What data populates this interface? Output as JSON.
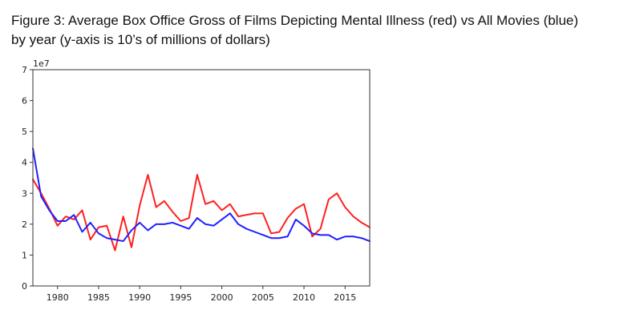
{
  "caption": {
    "line1": "Figure 3: Average Box Office Gross of Films Depicting Mental Illness (red) vs All Movies (blue)",
    "line2": "by year (y-axis is 10’s of millions of dollars)"
  },
  "chart_data": {
    "type": "line",
    "title": "",
    "xlabel": "",
    "ylabel": "",
    "y_scale_label": "1e7",
    "xlim": [
      1977,
      2018
    ],
    "ylim": [
      0,
      7
    ],
    "x_ticks": [
      1980,
      1985,
      1990,
      1995,
      2000,
      2005,
      2010,
      2015
    ],
    "y_ticks": [
      0,
      1,
      2,
      3,
      4,
      5,
      6,
      7
    ],
    "grid": false,
    "x": [
      1977,
      1978,
      1979,
      1980,
      1981,
      1982,
      1983,
      1984,
      1985,
      1986,
      1987,
      1988,
      1989,
      1990,
      1991,
      1992,
      1993,
      1994,
      1995,
      1996,
      1997,
      1998,
      1999,
      2000,
      2001,
      2002,
      2003,
      2004,
      2005,
      2006,
      2007,
      2008,
      2009,
      2010,
      2011,
      2012,
      2013,
      2014,
      2015,
      2016,
      2017,
      2018
    ],
    "series": [
      {
        "color": "#ff2020",
        "values": [
          3.45,
          3.0,
          2.5,
          1.95,
          2.25,
          2.15,
          2.45,
          1.5,
          1.9,
          1.95,
          1.15,
          2.25,
          1.25,
          2.6,
          3.6,
          2.55,
          2.75,
          2.4,
          2.1,
          2.2,
          3.6,
          2.65,
          2.75,
          2.45,
          2.65,
          2.25,
          2.3,
          2.35,
          2.35,
          1.7,
          1.75,
          2.2,
          2.5,
          2.65,
          1.6,
          1.85,
          2.8,
          3.0,
          2.55,
          2.25,
          2.05,
          1.9
        ]
      },
      {
        "color": "#2020ff",
        "values": [
          4.45,
          2.9,
          2.45,
          2.1,
          2.1,
          2.3,
          1.75,
          2.05,
          1.7,
          1.55,
          1.5,
          1.45,
          1.8,
          2.05,
          1.8,
          2.0,
          2.0,
          2.05,
          1.95,
          1.85,
          2.2,
          2.0,
          1.95,
          2.15,
          2.35,
          2.0,
          1.85,
          1.75,
          1.65,
          1.55,
          1.55,
          1.6,
          2.15,
          1.95,
          1.7,
          1.65,
          1.65,
          1.5,
          1.6,
          1.6,
          1.55,
          1.45
        ]
      }
    ]
  }
}
